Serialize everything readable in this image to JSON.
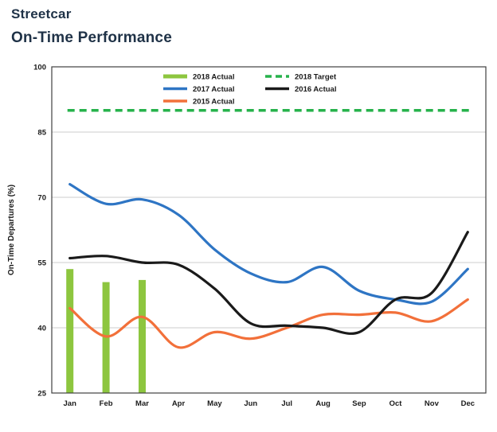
{
  "header": {
    "title_line1": "Streetcar",
    "title_line2": "On-Time Performance",
    "title_color": "#1f3247"
  },
  "chart_data": {
    "type": "line",
    "title": "",
    "xlabel": "",
    "ylabel": "On-Time Departures (%)",
    "ylim": [
      25,
      100
    ],
    "yticks": [
      25,
      40,
      55,
      70,
      85,
      100
    ],
    "grid": true,
    "legend_position": "top-center-inside",
    "categories": [
      "Jan",
      "Feb",
      "Mar",
      "Apr",
      "May",
      "Jun",
      "Jul",
      "Aug",
      "Sep",
      "Oct",
      "Nov",
      "Dec"
    ],
    "target_line": {
      "label": "2018 Target",
      "value": 90,
      "color": "#26b24b",
      "style": "dashed"
    },
    "bar_series": {
      "label": "2018 Actual",
      "color": "#8dc63f",
      "values": [
        53.5,
        50.5,
        51
      ]
    },
    "series": [
      {
        "label": "2017 Actual",
        "color": "#2e75c4",
        "values": [
          73,
          68.5,
          69.5,
          66,
          58,
          52.5,
          50.5,
          54,
          48.5,
          46.5,
          46,
          53.5
        ]
      },
      {
        "label": "2016 Actual",
        "color": "#1a1a1a",
        "values": [
          56,
          56.5,
          55,
          54.5,
          49,
          41,
          40.5,
          40,
          39,
          46.5,
          48,
          62
        ]
      },
      {
        "label": "2015 Actual",
        "color": "#f2703a",
        "values": [
          44.5,
          38,
          42.5,
          35.5,
          39,
          37.5,
          40,
          43,
          43,
          43.5,
          41.5,
          46.5
        ]
      }
    ],
    "legend": [
      {
        "label": "2018 Actual",
        "swatch": "bar",
        "color": "#8dc63f",
        "row": 0,
        "col": 0
      },
      {
        "label": "2018 Target",
        "swatch": "dashed",
        "color": "#26b24b",
        "row": 0,
        "col": 1
      },
      {
        "label": "2017 Actual",
        "swatch": "line",
        "color": "#2e75c4",
        "row": 1,
        "col": 0
      },
      {
        "label": "2016 Actual",
        "swatch": "line",
        "color": "#1a1a1a",
        "row": 1,
        "col": 1
      },
      {
        "label": "2015 Actual",
        "swatch": "line",
        "color": "#f2703a",
        "row": 2,
        "col": 0
      }
    ],
    "axis_text_color": "#1a1a1a",
    "grid_color": "#cccccc",
    "border_color": "#404040"
  }
}
